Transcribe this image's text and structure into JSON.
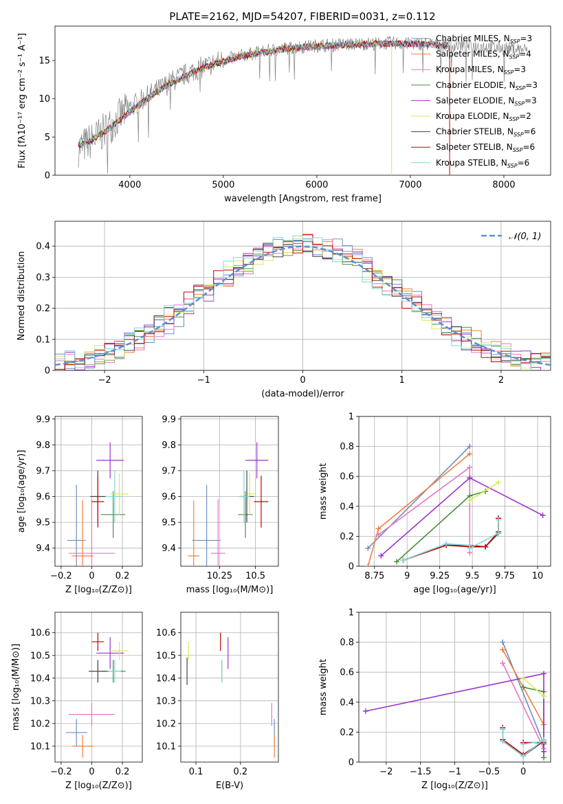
{
  "figure_title": "PLATE=2162, MJD=54207, FIBERID=0031, z=0.112",
  "models": [
    {
      "name": "Chabrier MILES",
      "nssp": "3",
      "color": "#6c8ebf"
    },
    {
      "name": "Salpeter MILES",
      "nssp": "4",
      "color": "#f47e3c"
    },
    {
      "name": "Kroupa MILES",
      "nssp": "3",
      "color": "#e377c2"
    },
    {
      "name": "Chabrier ELODIE",
      "nssp": "3",
      "color": "#4a8c3f"
    },
    {
      "name": "Salpeter ELODIE",
      "nssp": "3",
      "color": "#9932cc"
    },
    {
      "name": "Kroupa ELODIE",
      "nssp": "2",
      "color": "#d4ee53"
    },
    {
      "name": "Chabrier STELIB",
      "nssp": "6",
      "color": "#404040"
    },
    {
      "name": "Salpeter STELIB",
      "nssp": "6",
      "color": "#c00000"
    },
    {
      "name": "Kroupa STELIB",
      "nssp": "6",
      "color": "#7fd6d6"
    }
  ],
  "chart_data": [
    {
      "id": "spectrum",
      "type": "line",
      "xlabel": "wavelength [Angstrom, rest frame]",
      "ylabel": "Flux [fλ10⁻¹⁷ erg cm⁻² s⁻¹ A⁻¹]",
      "xlim": [
        3200,
        8500
      ],
      "ylim": [
        0,
        19.5
      ],
      "xticks": [
        4000,
        5000,
        6000,
        7000,
        8000
      ],
      "yticks": [
        0,
        5,
        10,
        15
      ],
      "data_color": "#808080",
      "data_x": [
        3450,
        3550,
        3650,
        3750,
        3850,
        3950,
        4050,
        4150,
        4250,
        4350,
        4450,
        4550,
        4650,
        4750,
        4850,
        4950,
        5050,
        5150,
        5250,
        5350,
        5450,
        5550,
        5650,
        5750,
        5850,
        5950,
        6050,
        6150,
        6250,
        6350,
        6450,
        6550,
        6650,
        6750,
        6850,
        6950,
        7050,
        7150,
        7250,
        7350,
        7450,
        7550,
        7650,
        7750,
        7850,
        7950,
        8050,
        8150,
        8250
      ],
      "data_y": [
        3.5,
        4.2,
        5.0,
        6.0,
        7.2,
        8.3,
        9.2,
        10.0,
        10.8,
        11.5,
        12.3,
        12.9,
        13.5,
        14.0,
        14.4,
        14.9,
        15.2,
        15.5,
        15.8,
        16.0,
        16.2,
        16.4,
        16.6,
        16.7,
        16.8,
        16.9,
        17.0,
        17.0,
        17.1,
        17.1,
        17.2,
        17.2,
        17.2,
        17.3,
        17.3,
        17.2,
        17.2,
        17.2,
        17.1,
        17.1,
        17.0,
        17.0,
        16.9,
        16.9,
        16.8,
        16.7,
        16.6,
        16.5,
        16.4
      ],
      "model_x": [
        3450,
        3600,
        3800,
        4000,
        4200,
        4400,
        4600,
        4800,
        5000,
        5200,
        5400,
        5600,
        5800,
        6000,
        6200,
        6400,
        6600,
        6800,
        7000,
        7200,
        7400
      ],
      "model_y": [
        3.9,
        4.6,
        6.3,
        8.3,
        10.1,
        11.8,
        13.0,
        14.1,
        14.9,
        15.6,
        16.0,
        16.4,
        16.7,
        16.9,
        17.0,
        17.1,
        17.2,
        17.2,
        17.2,
        17.1,
        17.0
      ],
      "model_xmax": [
        7400,
        7400,
        7400,
        7400,
        7400,
        6800,
        7400,
        7400,
        7400
      ],
      "legend_location": "right",
      "grid": false
    },
    {
      "id": "residual_hist",
      "type": "bar",
      "xlabel": "(data-model)/error",
      "ylabel": "Normed distribution",
      "xlim": [
        -2.5,
        2.5
      ],
      "ylim": [
        0,
        0.48
      ],
      "xticks": [
        -2,
        -1,
        0,
        1,
        2
      ],
      "yticks": [
        0.0,
        0.1,
        0.2,
        0.3,
        0.4
      ],
      "bin_width": 0.1,
      "reference_curve": {
        "name": "𝒩(0, 1)",
        "mean": 0,
        "sigma": 1,
        "style": "dashed",
        "color": "#5b8fd6"
      },
      "noise_amplitude": 0.035,
      "legend_location": "top-right",
      "grid": true
    },
    {
      "id": "age_vs_Z",
      "type": "scatter",
      "xlabel": "Z [log₁₀(Z/Z⊙)]",
      "ylabel": "age  [log₁₀(age/yr)]",
      "xlim": [
        -0.24,
        0.33
      ],
      "ylim": [
        9.33,
        9.91
      ],
      "xticks": [
        -0.2,
        0.0,
        0.2
      ],
      "yticks": [
        9.4,
        9.5,
        9.6,
        9.7,
        9.8,
        9.9
      ],
      "points": [
        {
          "x": -0.1,
          "xerr": 0.12,
          "y": 9.43,
          "yerr": 0.43
        },
        {
          "x": -0.06,
          "xerr": 0.14,
          "y": 9.37,
          "yerr": 0.43
        },
        {
          "x": 0.0,
          "xerr": 0.3,
          "y": 9.38,
          "yerr": 0.42
        },
        {
          "x": 0.14,
          "xerr": 0.16,
          "y": 9.53,
          "yerr": 0.18
        },
        {
          "x": 0.12,
          "xerr": 0.18,
          "y": 9.74,
          "yerr": 0.14
        },
        {
          "x": 0.18,
          "xerr": 0.12,
          "y": 9.61,
          "yerr": 0.16
        },
        {
          "x": 0.04,
          "xerr": 0.1,
          "y": 9.6,
          "yerr": 0.2
        },
        {
          "x": 0.04,
          "xerr": 0.08,
          "y": 9.58,
          "yerr": 0.2
        },
        {
          "x": 0.15,
          "xerr": 0.1,
          "y": 9.6,
          "yerr": 0.2
        }
      ],
      "grid": true
    },
    {
      "id": "age_vs_mass",
      "type": "scatter",
      "xlabel": "mass [log₁₀(M/M⊙)]",
      "ylabel": "",
      "xlim": [
        9.98,
        10.66
      ],
      "ylim": [
        9.33,
        9.91
      ],
      "xticks": [
        10.25,
        10.5
      ],
      "yticks": [
        9.4,
        9.5,
        9.6,
        9.7,
        9.8,
        9.9
      ],
      "points": [
        {
          "x": 10.16,
          "xerr": 0.2,
          "y": 9.43,
          "yerr": 0.43
        },
        {
          "x": 10.07,
          "xerr": 0.08,
          "y": 9.37,
          "yerr": 0.43
        },
        {
          "x": 10.24,
          "xerr": 0.1,
          "y": 9.38,
          "yerr": 0.42
        },
        {
          "x": 10.43,
          "xerr": 0.1,
          "y": 9.53,
          "yerr": 0.18
        },
        {
          "x": 10.51,
          "xerr": 0.16,
          "y": 9.74,
          "yerr": 0.14
        },
        {
          "x": 10.46,
          "xerr": 0.08,
          "y": 9.61,
          "yerr": 0.16
        },
        {
          "x": 10.44,
          "xerr": 0.1,
          "y": 9.6,
          "yerr": 0.2
        },
        {
          "x": 10.54,
          "xerr": 0.1,
          "y": 9.58,
          "yerr": 0.2
        },
        {
          "x": 10.42,
          "xerr": 0.08,
          "y": 9.6,
          "yerr": 0.2
        }
      ],
      "grid": true
    },
    {
      "id": "weight_vs_age",
      "type": "line",
      "xlabel": "age  [log₁₀(age/yr)]",
      "ylabel": "mass weight",
      "xlim": [
        8.63,
        10.1
      ],
      "ylim": [
        0,
        1
      ],
      "xticks": [
        8.75,
        9.0,
        9.25,
        9.5,
        9.75,
        10.0
      ],
      "yticks": [
        0.0,
        0.2,
        0.4,
        0.6,
        0.8,
        1.0
      ],
      "series": [
        {
          "x": [
            8.7,
            9.48
          ],
          "y": [
            0.12,
            0.8
          ]
        },
        {
          "x": [
            8.7,
            8.78,
            9.48
          ],
          "y": [
            0.0,
            0.25,
            0.75
          ]
        },
        {
          "x": [
            8.78,
            9.48,
            9.48
          ],
          "y": [
            0.21,
            0.66,
            0.09
          ]
        },
        {
          "x": [
            8.92,
            9.48,
            9.6
          ],
          "y": [
            0.03,
            0.47,
            0.5
          ]
        },
        {
          "x": [
            8.8,
            9.48,
            10.04
          ],
          "y": [
            0.07,
            0.59,
            0.34
          ]
        },
        {
          "x": [
            9.48,
            9.7
          ],
          "y": [
            0.44,
            0.56
          ]
        },
        {
          "x": [
            8.97,
            9.3,
            9.48,
            9.6,
            9.7,
            9.7
          ],
          "y": [
            0.04,
            0.14,
            0.14,
            0.13,
            0.22,
            0.32
          ]
        },
        {
          "x": [
            8.97,
            9.3,
            9.48,
            9.6,
            9.7,
            9.7
          ],
          "y": [
            0.04,
            0.14,
            0.13,
            0.13,
            0.23,
            0.32
          ]
        },
        {
          "x": [
            8.97,
            9.3,
            9.48,
            9.48,
            9.7,
            9.7
          ],
          "y": [
            0.04,
            0.15,
            0.14,
            0.12,
            0.22,
            0.31
          ]
        }
      ],
      "grid": true
    },
    {
      "id": "mass_vs_Z",
      "type": "scatter",
      "xlabel": "Z [log₁₀(Z/Z⊙)]",
      "ylabel": "mass [log₁₀(M/M⊙)]",
      "xlim": [
        -0.24,
        0.33
      ],
      "ylim": [
        10.03,
        10.69
      ],
      "xticks": [
        -0.2,
        0.0,
        0.2
      ],
      "yticks": [
        10.1,
        10.2,
        10.3,
        10.4,
        10.5,
        10.6
      ],
      "points": [
        {
          "x": -0.1,
          "xerr": 0.14,
          "y": 10.16,
          "yerr": 0.12
        },
        {
          "x": -0.06,
          "xerr": 0.14,
          "y": 10.1,
          "yerr": 0.1
        },
        {
          "x": 0.0,
          "xerr": 0.3,
          "y": 10.24,
          "yerr": 0.1
        },
        {
          "x": 0.14,
          "xerr": 0.16,
          "y": 10.43,
          "yerr": 0.1
        },
        {
          "x": 0.12,
          "xerr": 0.18,
          "y": 10.51,
          "yerr": 0.14
        },
        {
          "x": 0.18,
          "xerr": 0.12,
          "y": 10.52,
          "yerr": 0.08
        },
        {
          "x": 0.04,
          "xerr": 0.12,
          "y": 10.43,
          "yerr": 0.1
        },
        {
          "x": 0.04,
          "xerr": 0.08,
          "y": 10.56,
          "yerr": 0.08
        },
        {
          "x": 0.15,
          "xerr": 0.08,
          "y": 10.43,
          "yerr": 0.1
        }
      ],
      "grid": true
    },
    {
      "id": "mass_vs_ebv",
      "type": "scatter",
      "xlabel": "E(B-V)",
      "ylabel": "",
      "xlim": [
        0.066,
        0.285
      ],
      "ylim": [
        10.03,
        10.69
      ],
      "xticks": [
        0.1,
        0.2
      ],
      "yticks": [
        10.1,
        10.2,
        10.3,
        10.4,
        10.5,
        10.6
      ],
      "points": [
        {
          "x": 0.276,
          "xerr": 0,
          "y": 10.16,
          "yerr": 0.12
        },
        {
          "x": 0.276,
          "xerr": 0,
          "y": 10.1,
          "yerr": 0.1
        },
        {
          "x": 0.27,
          "xerr": 0,
          "y": 10.24,
          "yerr": 0.1
        },
        {
          "x": 0.158,
          "xerr": 0,
          "y": 10.43,
          "yerr": 0.1
        },
        {
          "x": 0.172,
          "xerr": 0,
          "y": 10.51,
          "yerr": 0.14
        },
        {
          "x": 0.083,
          "xerr": 0,
          "y": 10.52,
          "yerr": 0.08
        },
        {
          "x": 0.08,
          "xerr": 0,
          "y": 10.43,
          "yerr": 0.12
        },
        {
          "x": 0.155,
          "xerr": 0,
          "y": 10.56,
          "yerr": 0.08
        },
        {
          "x": 0.158,
          "xerr": 0,
          "y": 10.43,
          "yerr": 0.1
        }
      ],
      "grid": true
    },
    {
      "id": "weight_vs_Z",
      "type": "line",
      "xlabel": "Z [log₁₀(Z/Z⊙)]",
      "ylabel": "mass weight",
      "xlim": [
        -2.4,
        0.4
      ],
      "ylim": [
        0,
        1
      ],
      "xticks": [
        -2.0,
        -1.5,
        -1.0,
        -0.5,
        0.0
      ],
      "yticks": [
        0.0,
        0.2,
        0.4,
        0.6,
        0.8,
        1.0
      ],
      "series": [
        {
          "x": [
            -0.3,
            0.3
          ],
          "y": [
            0.8,
            0.12
          ]
        },
        {
          "x": [
            -0.3,
            0.3
          ],
          "y": [
            0.75,
            0.25
          ]
        },
        {
          "x": [
            -0.3,
            0.3
          ],
          "y": [
            0.66,
            0.09
          ]
        },
        {
          "x": [
            0.0,
            0.3,
            0.3
          ],
          "y": [
            0.5,
            0.47,
            0.03
          ]
        },
        {
          "x": [
            -2.3,
            0.3,
            0.3
          ],
          "y": [
            0.34,
            0.59,
            0.07
          ]
        },
        {
          "x": [
            0.0,
            0.3
          ],
          "y": [
            0.56,
            0.44
          ]
        },
        {
          "x": [
            -0.3,
            -0.3,
            0.0,
            0.3,
            0.3,
            0.0
          ],
          "y": [
            0.22,
            0.14,
            0.04,
            0.14,
            0.13,
            0.13
          ]
        },
        {
          "x": [
            -0.3,
            -0.3,
            0.0,
            0.3,
            0.3,
            0.0
          ],
          "y": [
            0.23,
            0.15,
            0.05,
            0.14,
            0.13,
            0.13
          ]
        },
        {
          "x": [
            -0.3,
            -0.3,
            0.0,
            0.3,
            0.3,
            0.0
          ],
          "y": [
            0.22,
            0.14,
            0.04,
            0.15,
            0.14,
            0.12
          ]
        }
      ],
      "grid": true
    }
  ]
}
